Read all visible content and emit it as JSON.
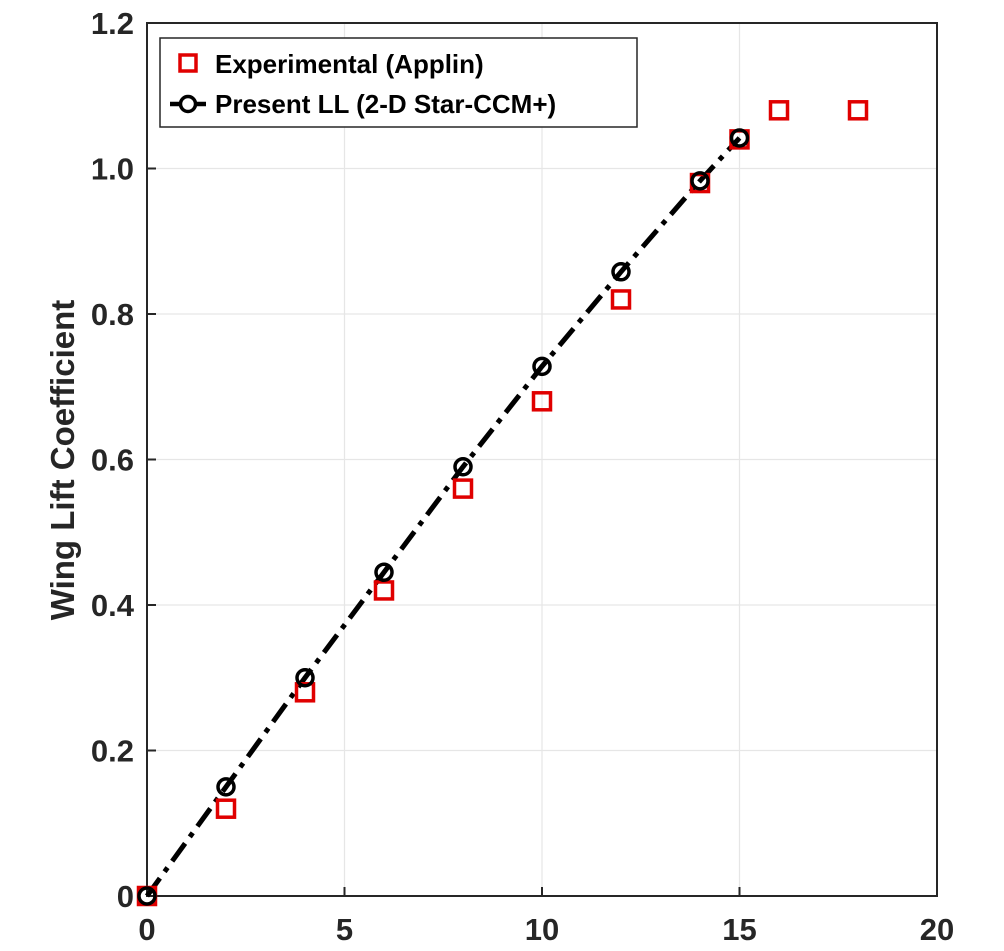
{
  "chart_data": {
    "type": "line",
    "title": "",
    "xlabel": "",
    "ylabel": "Wing Lift Coefficient",
    "xlim": [
      0,
      20
    ],
    "ylim": [
      0,
      1.2
    ],
    "x_ticks": [
      "0",
      "5",
      "10",
      "15",
      "20"
    ],
    "y_ticks": [
      "0",
      "0.2",
      "0.4",
      "0.6",
      "0.8",
      "1.0",
      "1.2"
    ],
    "grid": true,
    "legend_position": "top-left",
    "series": [
      {
        "name": "Experimental (Applin)",
        "marker": "square",
        "line": "none",
        "color": "#e00000",
        "x": [
          0,
          2,
          4,
          6,
          8,
          10,
          12,
          14,
          15,
          16,
          18
        ],
        "y": [
          0.0,
          0.12,
          0.28,
          0.42,
          0.56,
          0.68,
          0.82,
          0.98,
          1.04,
          1.08,
          1.08
        ]
      },
      {
        "name": "Present LL (2-D Star-CCM+)",
        "marker": "circle",
        "line": "dash-dot",
        "color": "#000000",
        "x": [
          0,
          2,
          4,
          6,
          8,
          10,
          12,
          14,
          15
        ],
        "y": [
          0.0,
          0.15,
          0.3,
          0.445,
          0.59,
          0.728,
          0.858,
          0.983,
          1.042
        ]
      }
    ]
  }
}
